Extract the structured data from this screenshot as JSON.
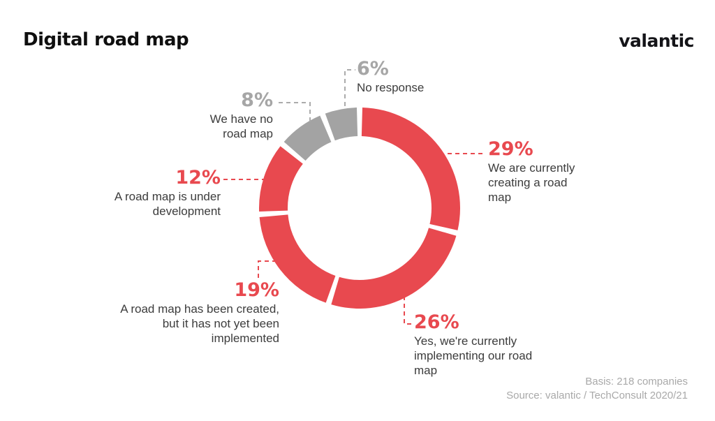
{
  "header": {
    "title": "Digital road map",
    "brand": "valantic"
  },
  "colors": {
    "accent_red": "#e8494f",
    "segment_gray": "#a3a3a3",
    "label_gray": "#a6a6a6",
    "text_dark": "#3c3c3c",
    "footer_gray": "#a9a9a9"
  },
  "chart_data": {
    "type": "pie",
    "subtype": "donut",
    "title": "Digital road map",
    "direction": "clockwise",
    "start_angle_deg": 0,
    "legend_position": "callouts-around-donut",
    "units": "%",
    "segments": [
      {
        "pct_label": "29%",
        "value": 29,
        "label": "We are currently creating a road map",
        "color": "#e8494f"
      },
      {
        "pct_label": "26%",
        "value": 26,
        "label": "Yes, we're currently implementing our road map",
        "color": "#e8494f"
      },
      {
        "pct_label": "19%",
        "value": 19,
        "label": "A road map has been created, but it has not yet been implemented",
        "color": "#e8494f"
      },
      {
        "pct_label": "12%",
        "value": 12,
        "label": "A road map is under development",
        "color": "#e8494f"
      },
      {
        "pct_label": "8%",
        "value": 8,
        "label": "We have no road map",
        "color": "#a3a3a3"
      },
      {
        "pct_label": "6%",
        "value": 6,
        "label": "No response",
        "color": "#a3a3a3"
      }
    ]
  },
  "footer": {
    "basis": "Basis: 218 companies",
    "source": "Source: valantic / TechConsult 2020/21"
  }
}
